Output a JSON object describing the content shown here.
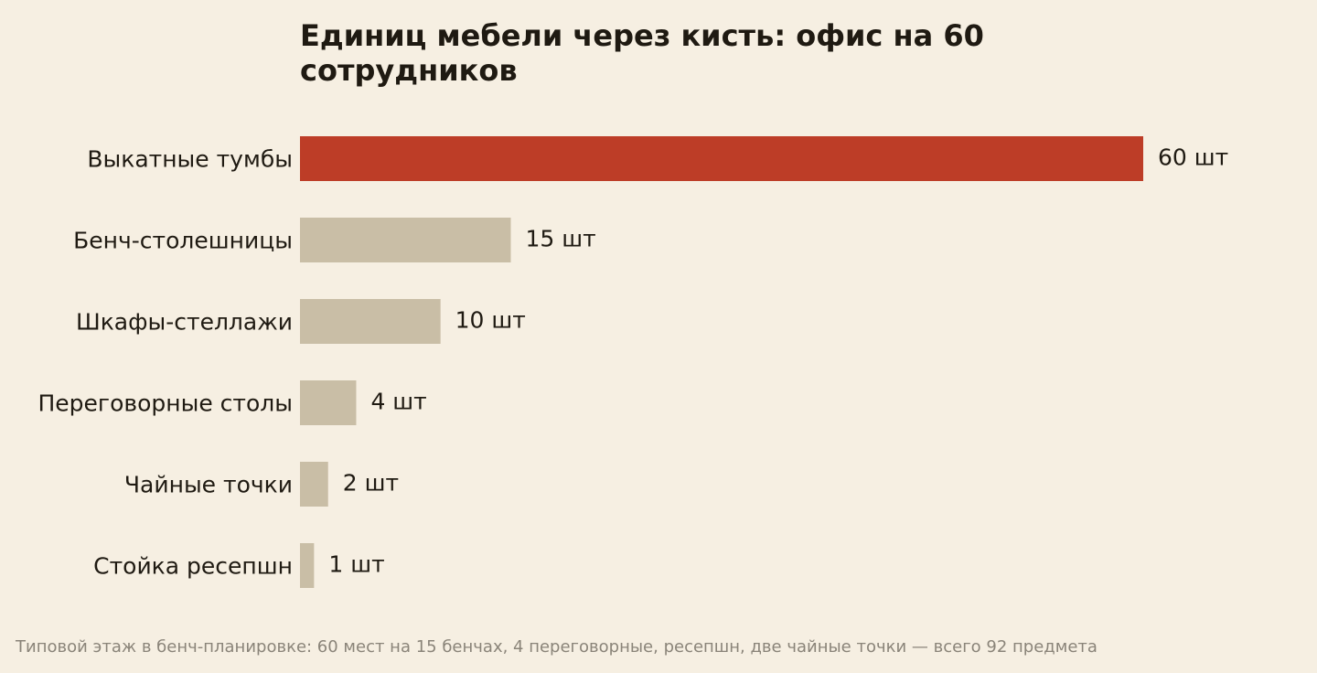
{
  "chart_data": {
    "type": "bar",
    "orientation": "horizontal",
    "title": "Единиц мебели через кисть: офис на 60 сотрудников",
    "note": "Типовой этаж в бенч-планировке: 60 мест на 15 бенчах, 4 переговорные, ресепшн, две чайные точки — всего 92 предмета",
    "categories": [
      "Выкатные тумбы",
      "Бенч-столешницы",
      "Шкафы-стеллажи",
      "Переговорные столы",
      "Чайные точки",
      "Стойка ресепшн"
    ],
    "values": [
      60,
      15,
      10,
      4,
      2,
      1
    ],
    "value_labels": [
      "60 шт",
      "15 шт",
      "10 шт",
      "4 шт",
      "2 шт",
      "1 шт"
    ],
    "highlight_index": 0,
    "colors": {
      "highlight": "#bd3d27",
      "default": "#c9bea6",
      "background": "#f6efe2",
      "text": "#1f1a12",
      "note": "#8a8479"
    },
    "xlim": [
      0,
      60
    ],
    "grid": false,
    "legend": "none"
  }
}
